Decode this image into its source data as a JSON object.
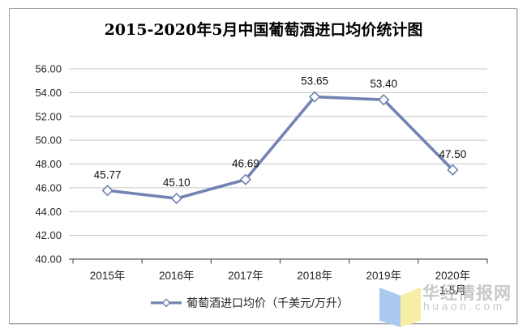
{
  "title": "2015-2020年5月中国葡萄酒进口均价统计图",
  "legend": {
    "label": "葡萄酒进口均价（千美元/万升）"
  },
  "watermark": {
    "name": "华经情报网",
    "domain": "huaon.com"
  },
  "colors": {
    "line": "#7282b2",
    "marker_fill": "#ffffff",
    "grid": "#c6c6c6",
    "axis": "#595959",
    "border": "#a6a6a6",
    "logo_blue": "#a9c9ef",
    "logo_yellow": "#f7eda4"
  },
  "chart_data": {
    "type": "line",
    "title": "2015-2020年5月中国葡萄酒进口均价统计图",
    "categories": [
      "2015年",
      "2016年",
      "2017年",
      "2018年",
      "2019年",
      "2020年"
    ],
    "category_sublabels": [
      "",
      "",
      "",
      "",
      "",
      "1-5月"
    ],
    "values": [
      45.77,
      45.1,
      46.69,
      53.65,
      53.4,
      47.5
    ],
    "data_labels": [
      "45.77",
      "45.10",
      "46.69",
      "53.65",
      "53.40",
      "47.50"
    ],
    "series": [
      {
        "name": "葡萄酒进口均价（千美元/万升）",
        "values": [
          45.77,
          45.1,
          46.69,
          53.65,
          53.4,
          47.5
        ]
      }
    ],
    "xlabel": "",
    "ylabel": "",
    "ylim": [
      40,
      56
    ],
    "ytick_step": 2,
    "ytick_decimals": 2,
    "grid": true,
    "legend_position": "bottom",
    "marker": "diamond"
  }
}
